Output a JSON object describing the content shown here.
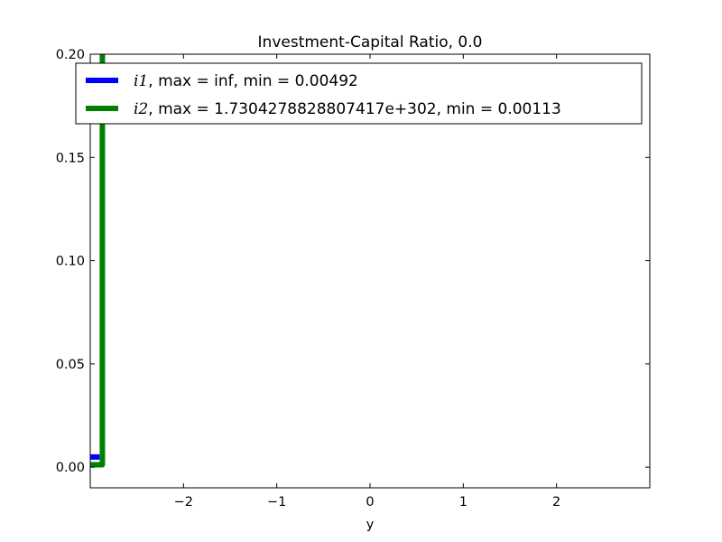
{
  "chart_data": {
    "type": "line",
    "title": "Investment-Capital Ratio, 0.0",
    "xlabel": "y",
    "ylabel": "",
    "xlim": [
      -3.0,
      3.0
    ],
    "ylim": [
      -0.01,
      0.2
    ],
    "x_ticks": [
      -2,
      -1,
      0,
      1,
      2
    ],
    "x_tick_labels": [
      "−2",
      "−1",
      "0",
      "1",
      "2"
    ],
    "y_ticks": [
      0.0,
      0.05,
      0.1,
      0.15,
      0.2
    ],
    "y_tick_labels": [
      "0.00",
      "0.05",
      "0.10",
      "0.15",
      "0.20"
    ],
    "grid": false,
    "legend_position": "top",
    "series": [
      {
        "name": "i1",
        "label_suffix": ", max = inf, min = 0.00492",
        "color": "#0000ff",
        "x": [
          -3.0,
          -2.97,
          -2.94,
          -2.9
        ],
        "y": [
          0.00492,
          0.00492,
          0.00492,
          0.00492
        ]
      },
      {
        "name": "i2",
        "label_suffix": ", max = 1.7304278828807417e+302, min = 0.00113",
        "color": "#008000",
        "x": [
          -3.0,
          -2.95,
          -2.9,
          -2.88,
          -2.87,
          -2.87
        ],
        "y": [
          0.00113,
          0.00113,
          0.00113,
          0.00113,
          0.00113,
          0.205
        ]
      }
    ]
  }
}
